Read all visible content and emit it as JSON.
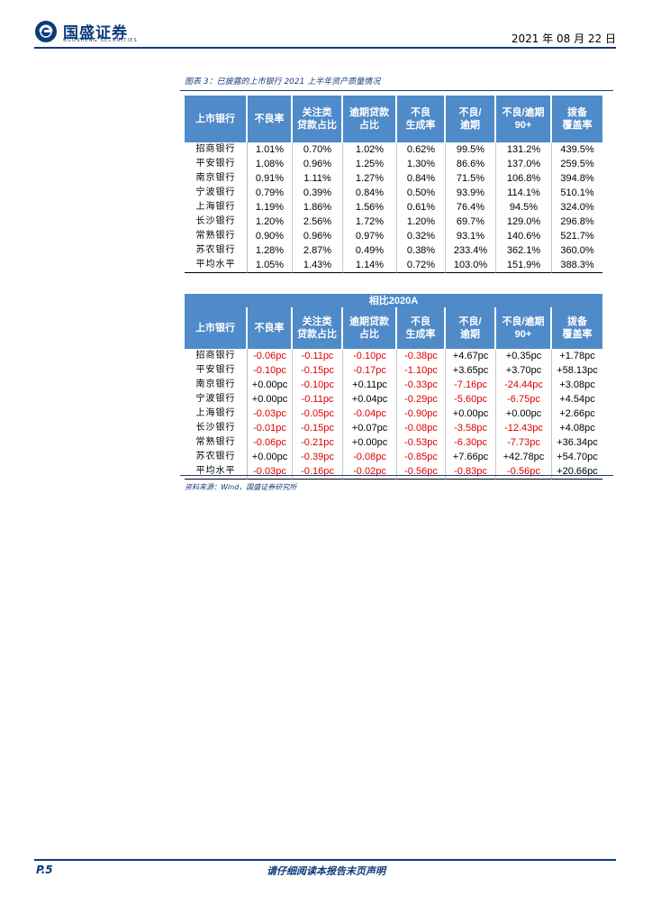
{
  "header": {
    "company_name": "国盛证券",
    "company_sub": "GUOSHENG SECURITIES",
    "date": "2021 年 08 月 22 日"
  },
  "figure": {
    "title": "图表 3：已披露的上市银行 2021 上半年资产质量情况",
    "columns": [
      {
        "line1": "上市银行",
        "line2": ""
      },
      {
        "line1": "不良率",
        "line2": ""
      },
      {
        "line1": "关注类",
        "line2": "贷款占比"
      },
      {
        "line1": "逾期贷款",
        "line2": "占比"
      },
      {
        "line1": "不良",
        "line2": "生成率"
      },
      {
        "line1": "不良/",
        "line2": "逾期"
      },
      {
        "line1": "不良/逾期",
        "line2": "90+"
      },
      {
        "line1": "拨备",
        "line2": "覆盖率"
      }
    ],
    "rows": [
      [
        "招商银行",
        "1.01%",
        "0.70%",
        "1.02%",
        "0.62%",
        "99.5%",
        "131.2%",
        "439.5%"
      ],
      [
        "平安银行",
        "1.08%",
        "0.96%",
        "1.25%",
        "1.30%",
        "86.6%",
        "137.0%",
        "259.5%"
      ],
      [
        "南京银行",
        "0.91%",
        "1.11%",
        "1.27%",
        "0.84%",
        "71.5%",
        "106.8%",
        "394.8%"
      ],
      [
        "宁波银行",
        "0.79%",
        "0.39%",
        "0.84%",
        "0.50%",
        "93.9%",
        "114.1%",
        "510.1%"
      ],
      [
        "上海银行",
        "1.19%",
        "1.86%",
        "1.56%",
        "0.61%",
        "76.4%",
        "94.5%",
        "324.0%"
      ],
      [
        "长沙银行",
        "1.20%",
        "2.56%",
        "1.72%",
        "1.20%",
        "69.7%",
        "129.0%",
        "296.8%"
      ],
      [
        "常熟银行",
        "0.90%",
        "0.96%",
        "0.97%",
        "0.32%",
        "93.1%",
        "140.6%",
        "521.7%"
      ],
      [
        "苏农银行",
        "1.28%",
        "2.87%",
        "0.49%",
        "0.38%",
        "233.4%",
        "362.1%",
        "360.0%"
      ],
      [
        "平均水平",
        "1.05%",
        "1.43%",
        "1.14%",
        "0.72%",
        "103.0%",
        "151.9%",
        "388.3%"
      ]
    ],
    "separator_mark": ",",
    "compare_band": "相比2020A",
    "rows2": [
      [
        "招商银行",
        "-0.06pc",
        "-0.11pc",
        "-0.10pc",
        "-0.38pc",
        "+4.67pc",
        "+0.35pc",
        "+1.78pc"
      ],
      [
        "平安银行",
        "-0.10pc",
        "-0.15pc",
        "-0.17pc",
        "-1.10pc",
        "+3.65pc",
        "+3.70pc",
        "+58.13pc"
      ],
      [
        "南京银行",
        "+0.00pc",
        "-0.10pc",
        "+0.11pc",
        "-0.33pc",
        "-7.16pc",
        "-24.44pc",
        "+3.08pc"
      ],
      [
        "宁波银行",
        "+0.00pc",
        "-0.11pc",
        "+0.04pc",
        "-0.29pc",
        "-5.60pc",
        "-6.75pc",
        "+4.54pc"
      ],
      [
        "上海银行",
        "-0.03pc",
        "-0.05pc",
        "-0.04pc",
        "-0.90pc",
        "+0.00pc",
        "+0.00pc",
        "+2.66pc"
      ],
      [
        "长沙银行",
        "-0.01pc",
        "-0.15pc",
        "+0.07pc",
        "-0.08pc",
        "-3.58pc",
        "-12.43pc",
        "+4.08pc"
      ],
      [
        "常熟银行",
        "-0.06pc",
        "-0.21pc",
        "+0.00pc",
        "-0.53pc",
        "-6.30pc",
        "-7.73pc",
        "+36.34pc"
      ],
      [
        "苏农银行",
        "+0.00pc",
        "-0.39pc",
        "-0.08pc",
        "-0.85pc",
        "+7.66pc",
        "+42.78pc",
        "+54.70pc"
      ],
      [
        "平均水平",
        "-0.03pc",
        "-0.16pc",
        "-0.02pc",
        "-0.56pc",
        "-0.83pc",
        "-0.56pc",
        "+20.66pc"
      ]
    ],
    "source": "资料来源：Wind，国盛证券研究所"
  },
  "footer": {
    "page": "P.5",
    "disclaimer": "请仔细阅读本报告末页声明"
  },
  "colors": {
    "brand": "#0d3b7a",
    "header_fill": "#4f8ac9",
    "band_fill": "#7ba3d4",
    "negative": "#e00000"
  }
}
